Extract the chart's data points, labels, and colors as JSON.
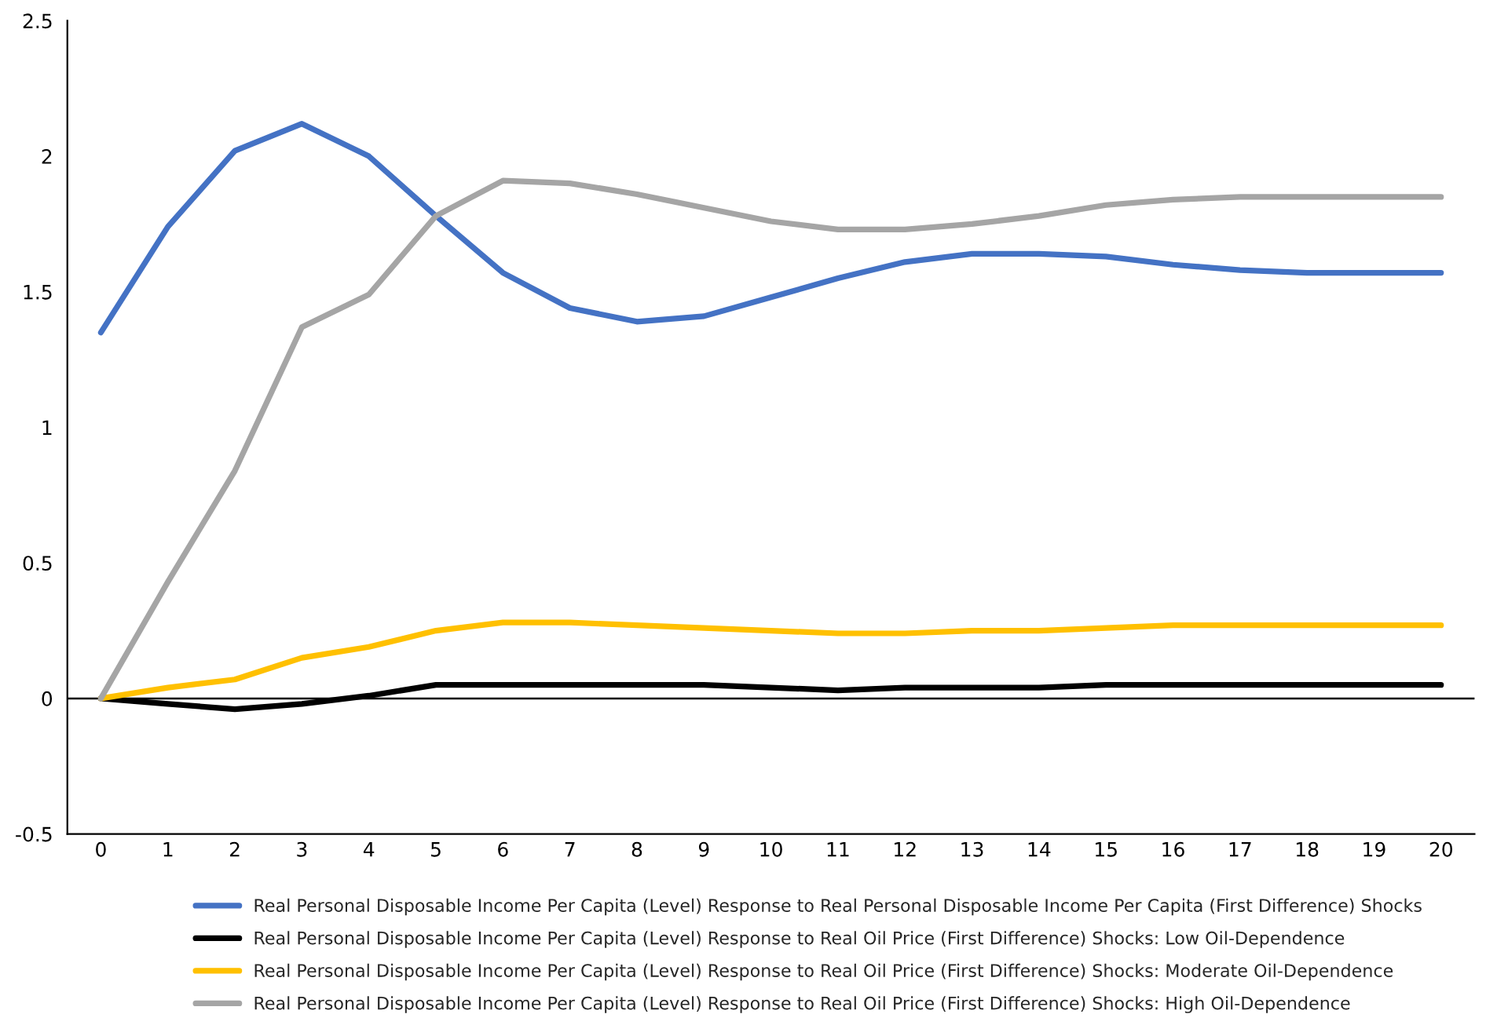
{
  "chart_data": {
    "type": "line",
    "categories": [
      "0",
      "1",
      "2",
      "3",
      "4",
      "5",
      "6",
      "7",
      "8",
      "9",
      "10",
      "11",
      "12",
      "13",
      "14",
      "15",
      "16",
      "17",
      "18",
      "19",
      "20"
    ],
    "series": [
      {
        "name": "Real Personal Disposable Income Per Capita (Level) Response to Real Personal Disposable Income Per Capita (First Difference) Shocks",
        "color": "#4472c4",
        "values": [
          1.35,
          1.74,
          2.02,
          2.12,
          2.0,
          1.78,
          1.57,
          1.44,
          1.39,
          1.41,
          1.48,
          1.55,
          1.61,
          1.64,
          1.64,
          1.63,
          1.6,
          1.58,
          1.57,
          1.57,
          1.57
        ]
      },
      {
        "name": "Real Personal Disposable Income Per Capita (Level) Response to Real Oil Price (First Difference) Shocks: Low Oil-Dependence",
        "color": "#000000",
        "values": [
          0,
          -0.02,
          -0.04,
          -0.02,
          0.01,
          0.05,
          0.05,
          0.05,
          0.05,
          0.05,
          0.04,
          0.03,
          0.04,
          0.04,
          0.04,
          0.05,
          0.05,
          0.05,
          0.05,
          0.05,
          0.05
        ]
      },
      {
        "name": "Real Personal Disposable Income Per Capita (Level) Response to Real Oil Price (First Difference) Shocks: Moderate Oil-Dependence",
        "color": "#ffc000",
        "values": [
          0,
          0.04,
          0.07,
          0.15,
          0.19,
          0.25,
          0.28,
          0.28,
          0.27,
          0.26,
          0.25,
          0.24,
          0.24,
          0.25,
          0.25,
          0.26,
          0.27,
          0.27,
          0.27,
          0.27,
          0.27
        ]
      },
      {
        "name": "Real Personal Disposable Income Per Capita (Level) Response to Real Oil Price (First Difference) Shocks: High Oil-Dependence",
        "color": "#a5a5a5",
        "values": [
          0,
          0.43,
          0.84,
          1.37,
          1.49,
          1.78,
          1.91,
          1.9,
          1.86,
          1.81,
          1.76,
          1.73,
          1.73,
          1.75,
          1.78,
          1.82,
          1.84,
          1.85,
          1.85,
          1.85,
          1.85
        ]
      }
    ],
    "ylim": [
      -0.5,
      2.5
    ],
    "yticks": [
      {
        "value": -0.5,
        "label": "-0.5"
      },
      0,
      0.5,
      1,
      1.5,
      2,
      2.5
    ],
    "ref_lines": [
      {
        "axis": "y",
        "value": 0,
        "label": null,
        "color": "#000000"
      }
    ],
    "grid": false,
    "legend": "bottom",
    "marker": "none",
    "line_style": "solid"
  }
}
